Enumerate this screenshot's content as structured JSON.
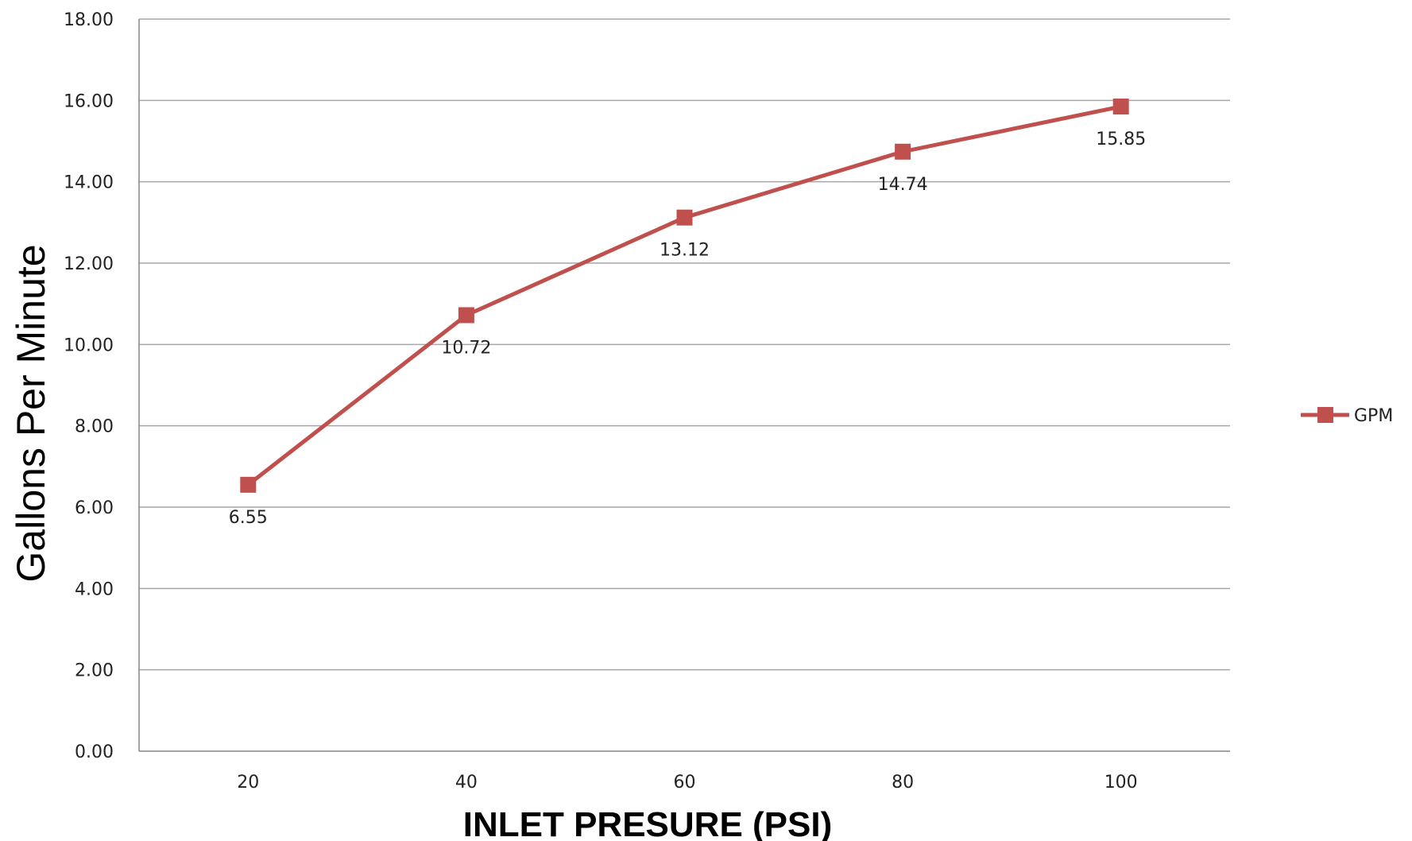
{
  "chart_data": {
    "type": "line",
    "title": "",
    "xlabel": "INLET PRESURE (PSI)",
    "ylabel": "Gallons Per Minute",
    "categories": [
      "20",
      "40",
      "60",
      "80",
      "100"
    ],
    "series": [
      {
        "name": "GPM",
        "values": [
          6.55,
          10.72,
          13.12,
          14.74,
          15.85
        ],
        "data_labels": [
          "6.55",
          "10.72",
          "13.12",
          "14.74",
          "15.85"
        ],
        "color": "#c0504d",
        "marker": "square"
      }
    ],
    "ylim": [
      0,
      18
    ],
    "y_ticks": [
      "0.00",
      "2.00",
      "4.00",
      "6.00",
      "8.00",
      "10.00",
      "12.00",
      "14.00",
      "16.00",
      "18.00"
    ],
    "grid": "horizontal",
    "legend_position": "right",
    "colors": {
      "gridline": "#a6a6a6",
      "axis": "#868686"
    }
  }
}
